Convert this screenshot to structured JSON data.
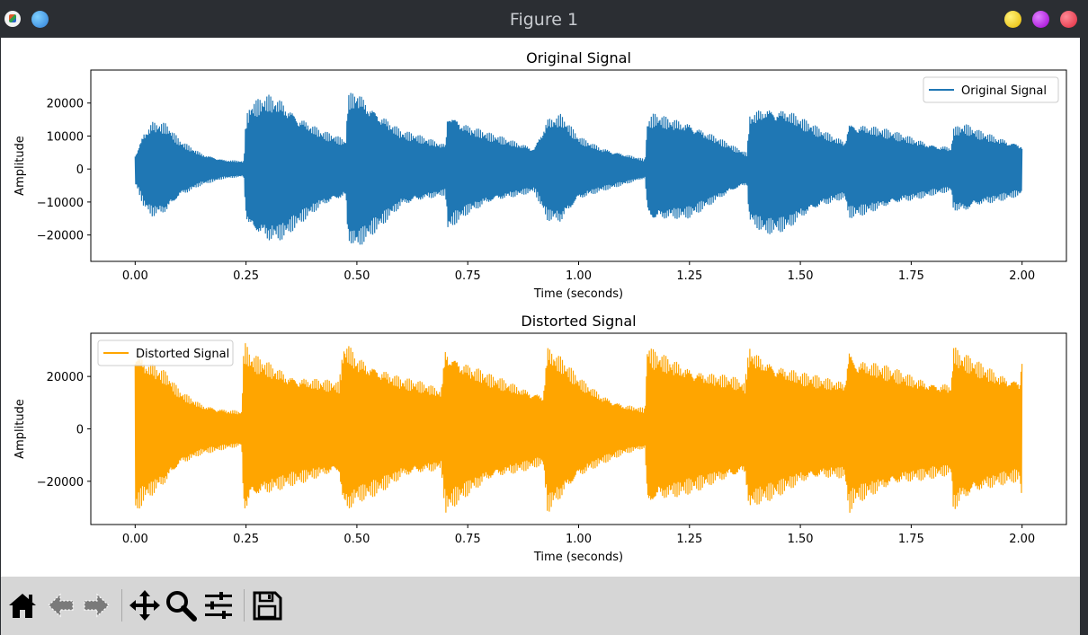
{
  "window": {
    "title": "Figure 1",
    "controls": [
      {
        "name": "minimize-button",
        "color": "#f5d31c"
      },
      {
        "name": "maximize-button",
        "color": "#b212e6"
      },
      {
        "name": "close-button",
        "color": "#f0394e"
      }
    ]
  },
  "toolbar": {
    "buttons": [
      "home-icon",
      "back-arrow-icon",
      "forward-arrow-icon",
      "pan-icon",
      "zoom-icon",
      "configure-subplots-icon",
      "save-icon"
    ]
  },
  "chart_data": [
    {
      "type": "line",
      "title": "Original Signal",
      "xlabel": "Time (seconds)",
      "ylabel": "Amplitude",
      "xlim": [
        -0.1,
        2.1
      ],
      "ylim": [
        -28000,
        30000
      ],
      "xticks": [
        0.0,
        0.25,
        0.5,
        0.75,
        1.0,
        1.25,
        1.5,
        1.75,
        2.0
      ],
      "xtick_labels": [
        "0.00",
        "0.25",
        "0.50",
        "0.75",
        "1.00",
        "1.25",
        "1.50",
        "1.75",
        "2.00"
      ],
      "yticks": [
        -20000,
        -10000,
        0,
        10000,
        20000
      ],
      "ytick_labels": [
        "−20000",
        "−10000",
        "0",
        "10000",
        "20000"
      ],
      "legend": {
        "position": "top-right"
      },
      "series": [
        {
          "name": "Original Signal",
          "color": "#1f77b4",
          "envelope": {
            "x": [
              0.0,
              0.005,
              0.02,
              0.04,
              0.07,
              0.1,
              0.15,
              0.2,
              0.245,
              0.25,
              0.26,
              0.3,
              0.33,
              0.37,
              0.42,
              0.475,
              0.48,
              0.5,
              0.52,
              0.56,
              0.6,
              0.65,
              0.7,
              0.705,
              0.72,
              0.75,
              0.8,
              0.85,
              0.9,
              0.93,
              0.96,
              1.0,
              1.05,
              1.1,
              1.15,
              1.155,
              1.17,
              1.2,
              1.25,
              1.3,
              1.35,
              1.38,
              1.385,
              1.42,
              1.47,
              1.5,
              1.55,
              1.6,
              1.61,
              1.65,
              1.7,
              1.75,
              1.8,
              1.84,
              1.845,
              1.87,
              1.9,
              1.95,
              2.0
            ],
            "y": [
              5000,
              6000,
              12000,
              15000,
              14000,
              9000,
              5000,
              3000,
              2500,
              16000,
              20000,
              23000,
              22000,
              17000,
              12000,
              9000,
              23000,
              25000,
              22000,
              17000,
              12000,
              10000,
              8000,
              19000,
              17000,
              14000,
              11000,
              9000,
              7000,
              16000,
              17000,
              10000,
              7000,
              5000,
              3000,
              15000,
              17000,
              16000,
              15000,
              11000,
              7000,
              5000,
              17000,
              20000,
              19000,
              16000,
              12000,
              9000,
              15000,
              14000,
              12000,
              10000,
              8000,
              7000,
              13000,
              14000,
              12000,
              10000,
              8000
            ]
          }
        }
      ]
    },
    {
      "type": "line",
      "title": "Distorted Signal",
      "xlabel": "Time (seconds)",
      "ylabel": "Amplitude",
      "xlim": [
        -0.1,
        2.1
      ],
      "ylim": [
        -36500,
        36500
      ],
      "xticks": [
        0.0,
        0.25,
        0.5,
        0.75,
        1.0,
        1.25,
        1.5,
        1.75,
        2.0
      ],
      "xtick_labels": [
        "0.00",
        "0.25",
        "0.50",
        "0.75",
        "1.00",
        "1.25",
        "1.50",
        "1.75",
        "2.00"
      ],
      "yticks": [
        -20000,
        0,
        20000
      ],
      "ytick_labels": [
        "−20000",
        "0",
        "20000"
      ],
      "legend": {
        "position": "top-left"
      },
      "series": [
        {
          "name": "Distorted Signal",
          "color": "#ffa500",
          "envelope": {
            "x": [
              0.0,
              0.005,
              0.02,
              0.04,
              0.07,
              0.1,
              0.15,
              0.2,
              0.24,
              0.245,
              0.25,
              0.26,
              0.3,
              0.35,
              0.4,
              0.46,
              0.47,
              0.48,
              0.5,
              0.55,
              0.6,
              0.65,
              0.69,
              0.7,
              0.71,
              0.75,
              0.8,
              0.85,
              0.9,
              0.92,
              0.93,
              0.96,
              1.0,
              1.05,
              1.1,
              1.15,
              1.155,
              1.17,
              1.25,
              1.3,
              1.35,
              1.375,
              1.385,
              1.4,
              1.45,
              1.5,
              1.55,
              1.6,
              1.61,
              1.62,
              1.7,
              1.75,
              1.8,
              1.84,
              1.845,
              1.86,
              1.9,
              1.95,
              1.995,
              2.0
            ],
            "y": [
              33000,
              32000,
              28000,
              26000,
              22000,
              15000,
              10000,
              8000,
              7000,
              33000,
              33000,
              29000,
              26000,
              22000,
              20000,
              18000,
              33000,
              33000,
              29000,
              25000,
              20000,
              18000,
              16000,
              33000,
              31000,
              26000,
              21000,
              18000,
              15000,
              14000,
              33000,
              28000,
              20000,
              14000,
              10000,
              8000,
              33000,
              30000,
              25000,
              22000,
              20000,
              18000,
              33000,
              30000,
              26000,
              22000,
              20000,
              19000,
              33000,
              29000,
              24000,
              21000,
              19000,
              18000,
              33000,
              30000,
              26000,
              22000,
              20000,
              33000
            ]
          }
        }
      ]
    }
  ]
}
